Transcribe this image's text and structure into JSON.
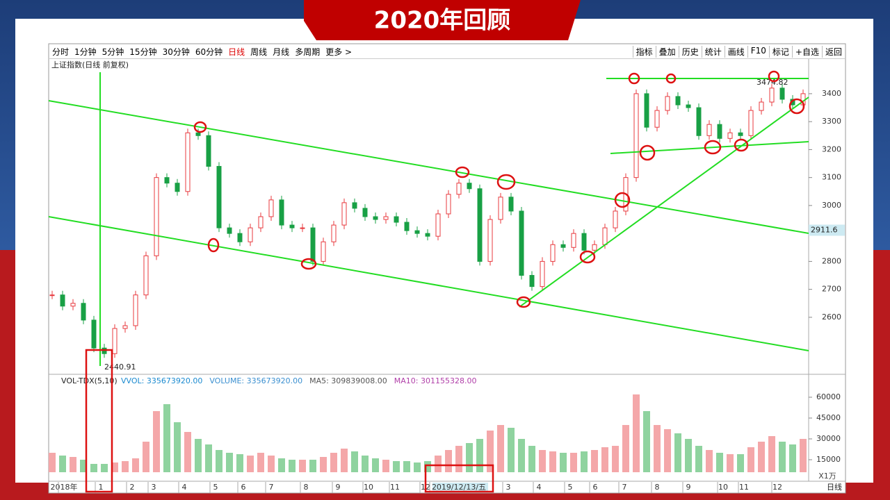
{
  "slide_title": "2020年回顾",
  "toolbar": {
    "left": [
      "分时",
      "1分钟",
      "5分钟",
      "15分钟",
      "30分钟",
      "60分钟",
      "日线",
      "周线",
      "月线",
      "多周期",
      "更多 >"
    ],
    "right": [
      "指标",
      "叠加",
      "历史",
      "统计",
      "画线",
      "F10",
      "标记",
      "+自选",
      "返回"
    ]
  },
  "chart_data": [
    {
      "type": "line",
      "title": "上证指数(日线 前复权)",
      "values": [
        2680,
        2640,
        2650,
        2590,
        2490,
        2470,
        2560,
        2570,
        2680,
        2820,
        3100,
        3080,
        3050,
        3260,
        3250,
        3140,
        2920,
        2900,
        2870,
        2920,
        2960,
        3020,
        2930,
        2920,
        2920,
        2800,
        2870,
        2930,
        3010,
        2990,
        2960,
        2950,
        2960,
        2940,
        2910,
        2900,
        2890,
        2970,
        3040,
        3080,
        3060,
        2800,
        2950,
        3030,
        2980,
        2750,
        2710,
        2800,
        2860,
        2850,
        2900,
        2840,
        2860,
        2920,
        2980,
        3100,
        3400,
        3280,
        3340,
        3390,
        3360,
        3350,
        3250,
        3290,
        3240,
        3260,
        3250,
        3340,
        3370,
        3420,
        3380,
        3360,
        3400
      ],
      "ylim": [
        2401,
        3524
      ],
      "yticks": [
        3400,
        3300,
        3200,
        3100,
        3000,
        2900,
        2800,
        2700,
        2600
      ],
      "current_value": 2911.6,
      "low_label": 2440.91,
      "high_label": 3474.82
    },
    {
      "type": "bar",
      "title": "VOL-TDX(5,10)",
      "info": [
        "VVOL: 335673920.00",
        "VOLUME: 335673920.00",
        "MA5: 309839008.00",
        "MA10: 301155328.00"
      ],
      "values": [
        20000,
        18000,
        17000,
        15000,
        12000,
        12000,
        13000,
        14000,
        16000,
        28000,
        50000,
        55000,
        42000,
        35000,
        30000,
        26000,
        22000,
        20000,
        19000,
        18000,
        20000,
        18000,
        16000,
        15000,
        15000,
        15000,
        17000,
        20000,
        23000,
        21000,
        18000,
        16000,
        15000,
        14000,
        14000,
        13000,
        14000,
        18000,
        22000,
        25000,
        27000,
        30000,
        36000,
        40000,
        38000,
        30000,
        25000,
        22000,
        21000,
        20000,
        20000,
        21000,
        22000,
        24000,
        25000,
        40000,
        62000,
        50000,
        40000,
        37000,
        34000,
        30000,
        25000,
        22000,
        20000,
        19000,
        19000,
        24000,
        28000,
        32000,
        28000,
        26000,
        30000
      ],
      "ylim": [
        6000,
        76000
      ],
      "yticks": [
        60000,
        45000,
        30000,
        15000
      ],
      "unit": "X1万"
    }
  ],
  "date_axis": [
    "2018年",
    "1",
    "2",
    "3",
    "4",
    "5",
    "6",
    "7",
    "8",
    "9",
    "10",
    "11",
    "12",
    "2019/12/13/五",
    "3",
    "4",
    "5",
    "6",
    "7",
    "8",
    "9",
    "10",
    "11",
    "12"
  ],
  "period_label": "日线"
}
